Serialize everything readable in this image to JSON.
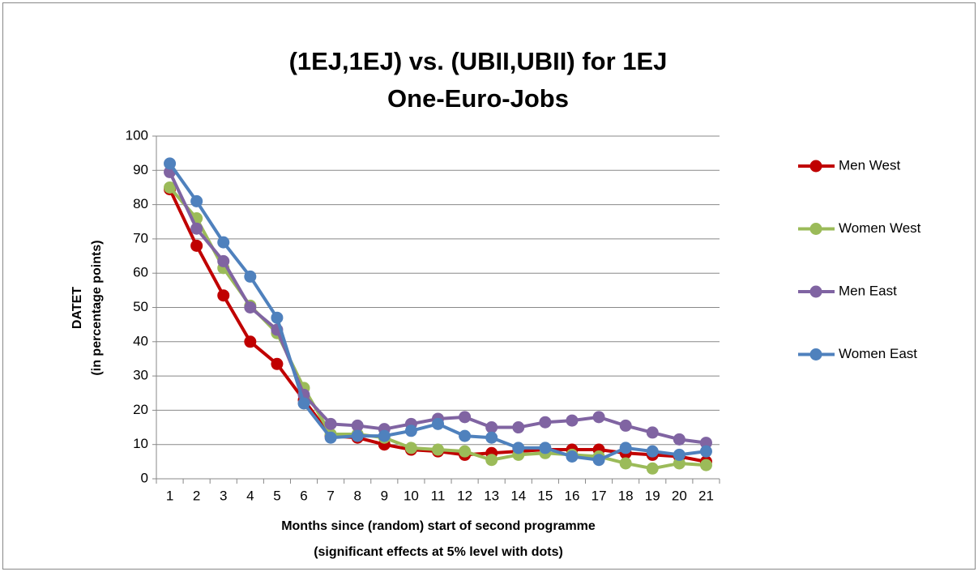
{
  "chart_data": {
    "type": "line",
    "title": [
      "(1EJ,1EJ) vs. (UBII,UBII) for 1EJ",
      "One-Euro-Jobs"
    ],
    "y_label": [
      "DATET",
      "(in percentage points)"
    ],
    "x_label": [
      "Months since (random) start of second programme",
      "(significant  effects at 5% level with dots)"
    ],
    "categories": [
      1,
      2,
      3,
      4,
      5,
      6,
      7,
      8,
      9,
      10,
      11,
      12,
      13,
      14,
      15,
      16,
      17,
      18,
      19,
      20,
      21
    ],
    "series": [
      {
        "name": "Men West",
        "color": "#c00000",
        "values": [
          84.5,
          68,
          53.5,
          40,
          33.5,
          23,
          12.5,
          12,
          10,
          8.5,
          8,
          7,
          7.5,
          8,
          8.5,
          8.5,
          8.5,
          7.5,
          7,
          6.5,
          5
        ]
      },
      {
        "name": "Women West",
        "color": "#9bbb59",
        "values": [
          85,
          76,
          61.5,
          50.5,
          42.5,
          26.5,
          13,
          13,
          12,
          9,
          8.5,
          8,
          5.5,
          7,
          7.5,
          7,
          6.5,
          4.5,
          3,
          4.5,
          4
        ]
      },
      {
        "name": "Men East",
        "color": "#8064a2",
        "values": [
          89.5,
          73,
          63.5,
          50,
          43.5,
          24.5,
          16,
          15.5,
          14.5,
          16,
          17.5,
          18,
          15,
          15,
          16.5,
          17,
          18,
          15.5,
          13.5,
          11.5,
          10.5
        ]
      },
      {
        "name": "Women East",
        "color": "#4f81bd",
        "values": [
          92,
          81,
          69,
          59,
          47,
          22,
          12,
          12.5,
          12.5,
          14,
          16,
          12.5,
          12,
          9,
          9,
          6.5,
          5.5,
          9,
          8,
          7,
          8
        ]
      }
    ],
    "ylim": [
      0,
      100
    ],
    "yticks": [
      0,
      10,
      20,
      30,
      40,
      50,
      60,
      70,
      80,
      90,
      100
    ],
    "grid": true,
    "legend": "right"
  }
}
